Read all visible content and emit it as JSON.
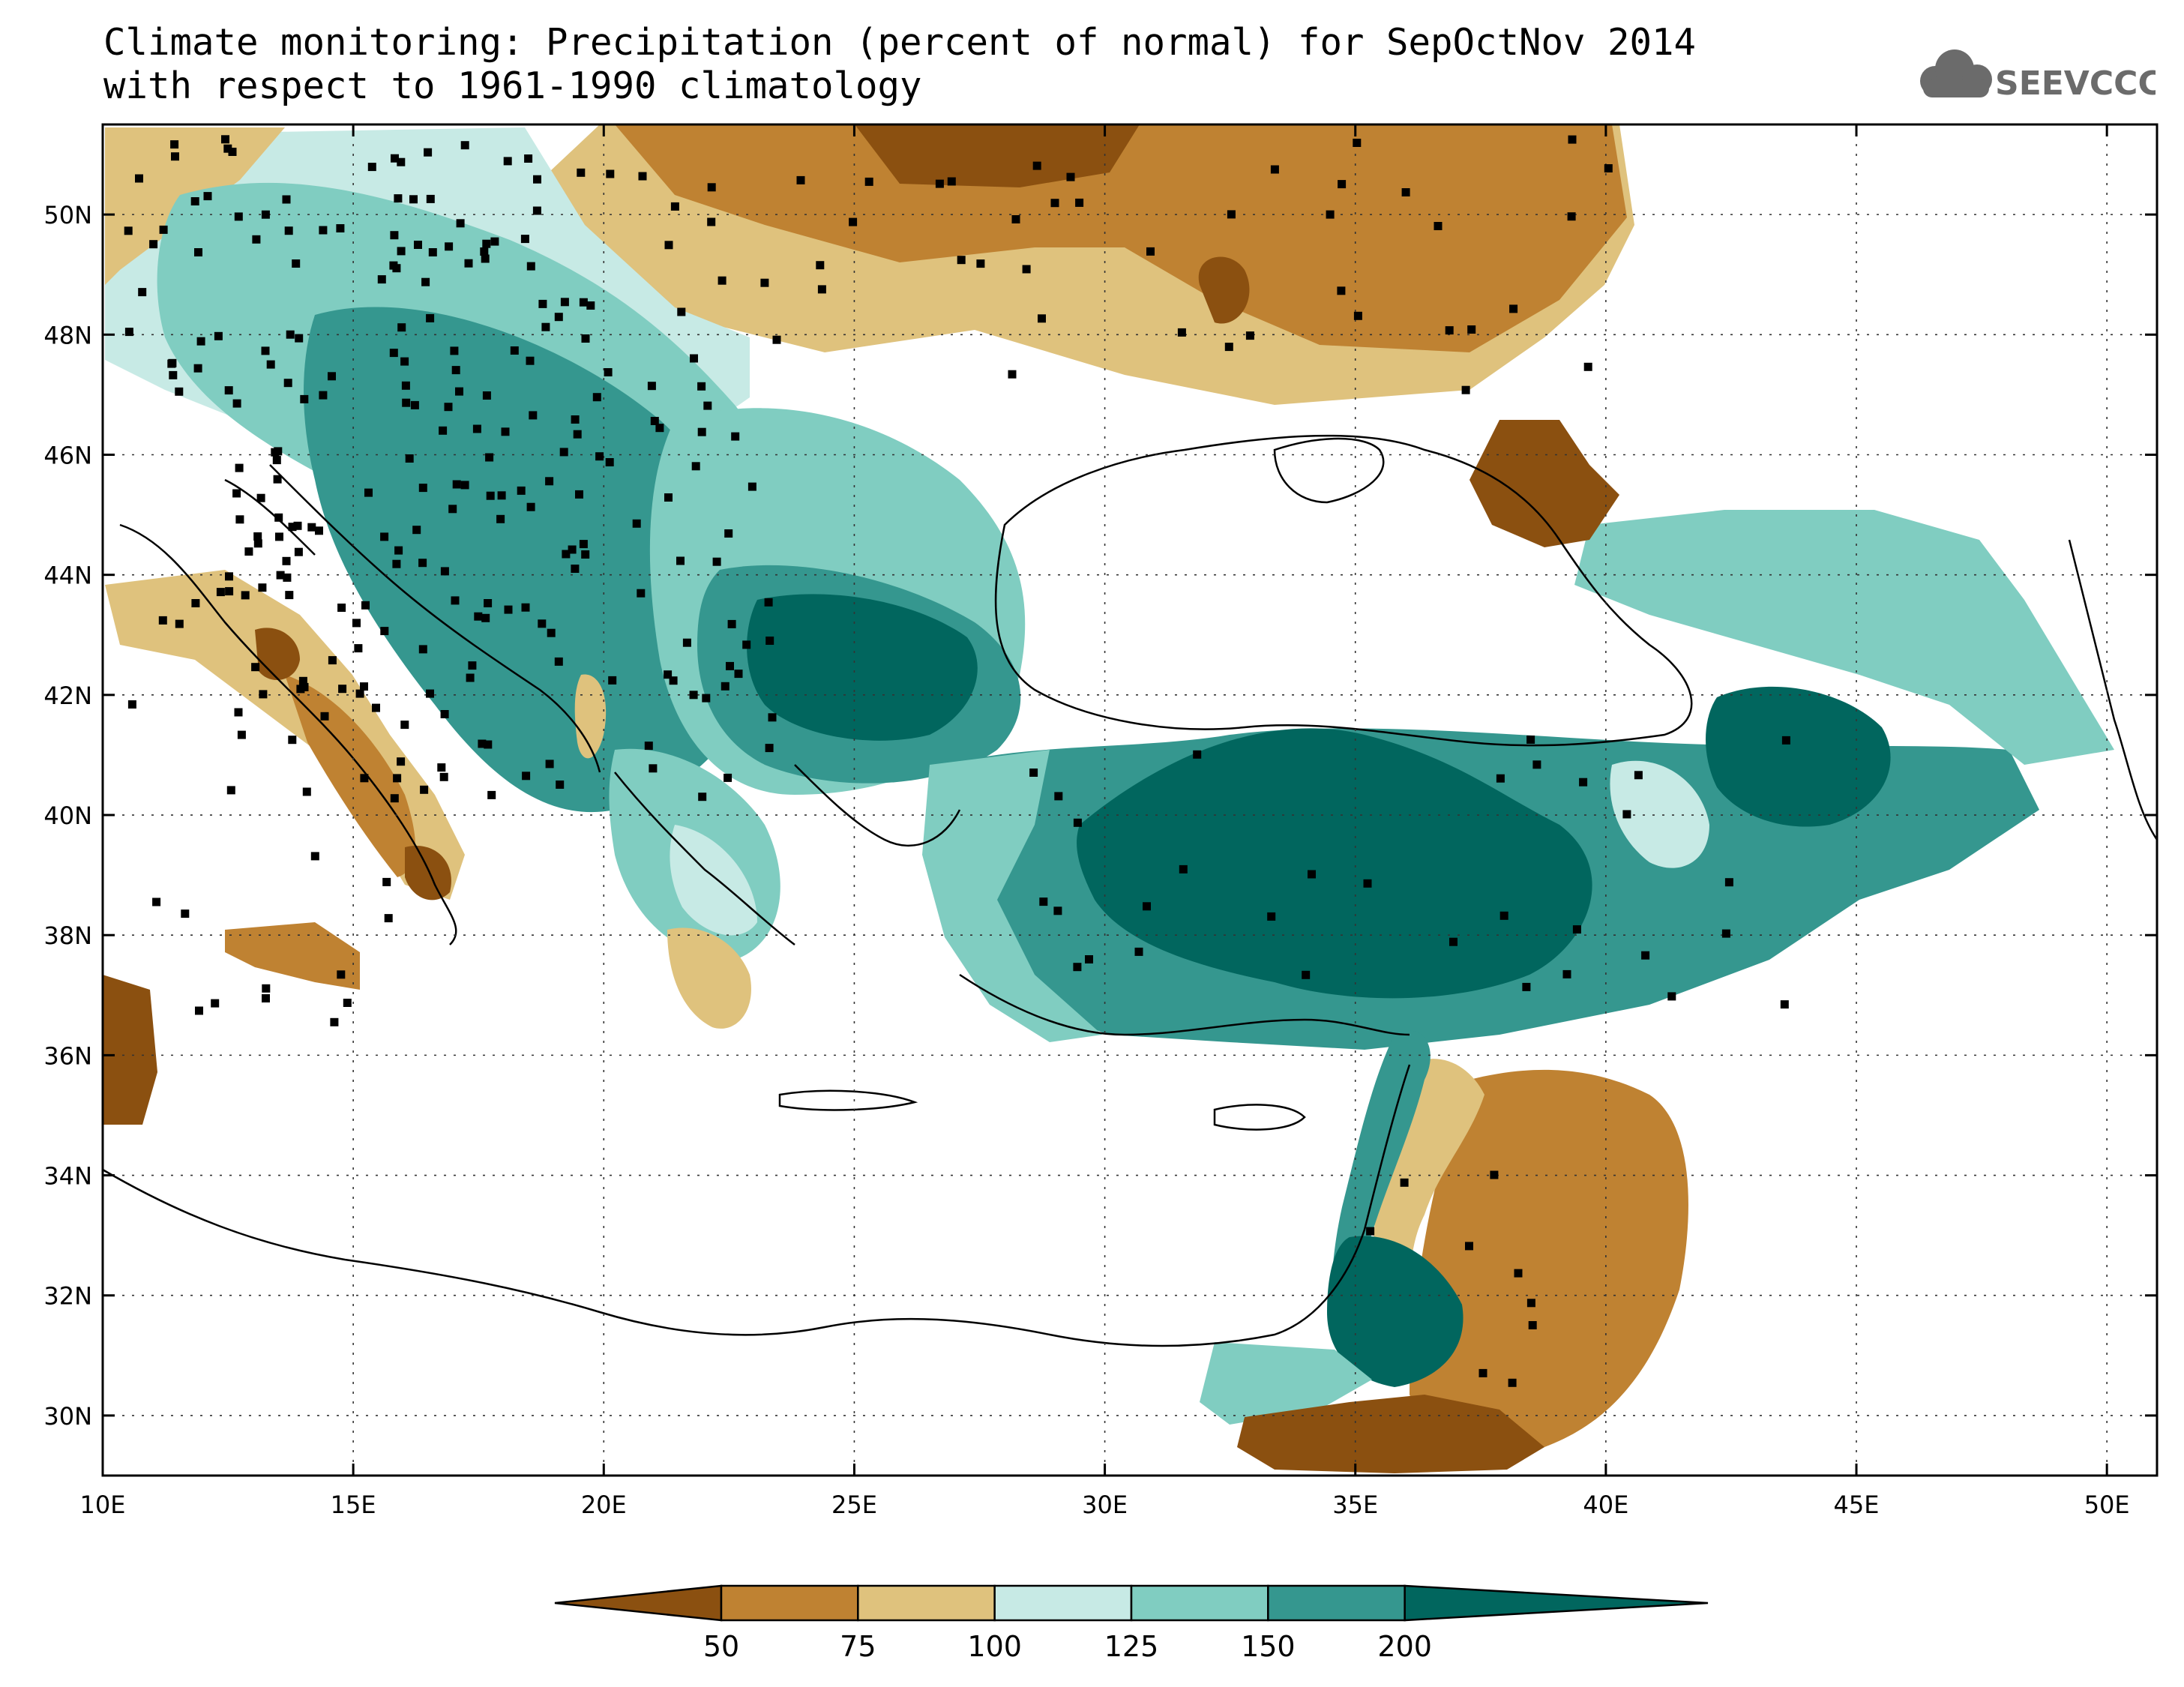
{
  "title": {
    "line1": "Climate monitoring: Precipitation (percent of normal) for SepOctNov 2014",
    "line2": "with respect to 1961-1990 climatology"
  },
  "logo": {
    "text": "SEEVCCC",
    "icon": "cloud-icon"
  },
  "map": {
    "projection": "lat-lon",
    "lon_range": [
      10,
      51
    ],
    "lat_range": [
      29,
      51.5
    ],
    "grid": true,
    "lon_ticks": [
      "10E",
      "15E",
      "20E",
      "25E",
      "30E",
      "35E",
      "40E",
      "45E",
      "50E"
    ],
    "lat_ticks": [
      "30N",
      "32N",
      "34N",
      "36N",
      "38N",
      "40N",
      "42N",
      "44N",
      "46N",
      "48N",
      "50N"
    ]
  },
  "colorbar": {
    "labels": [
      "50",
      "75",
      "100",
      "125",
      "150",
      "200"
    ],
    "colors": [
      "#8b5010",
      "#bf8232",
      "#dfc27d",
      "#c7eae5",
      "#80cdc1",
      "#35978f",
      "#01665e"
    ]
  },
  "colors": {
    "very_dry": "#8b5010",
    "dry": "#bf8232",
    "slightly_dry": "#dfc27d",
    "slightly_wet": "#c7eae5",
    "wet": "#80cdc1",
    "very_wet": "#35978f",
    "extremely_wet": "#01665e"
  }
}
